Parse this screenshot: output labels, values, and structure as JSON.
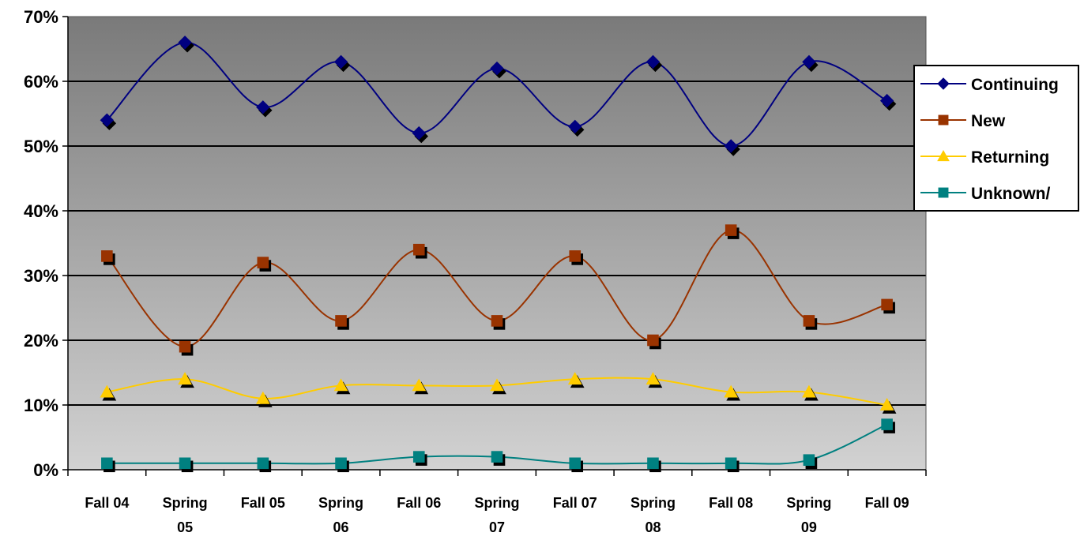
{
  "chart_data": {
    "type": "line",
    "title": "",
    "xlabel": "",
    "ylabel": "",
    "ylim": [
      0,
      70
    ],
    "y_tick_format": "percent",
    "y_ticks": [
      "0%",
      "10%",
      "20%",
      "30%",
      "40%",
      "50%",
      "60%",
      "70%"
    ],
    "categories": [
      [
        "Fall 04"
      ],
      [
        "Spring",
        "05"
      ],
      [
        "Fall 05"
      ],
      [
        "Spring",
        "06"
      ],
      [
        "Fall 06"
      ],
      [
        "Spring",
        "07"
      ],
      [
        "Fall 07"
      ],
      [
        "Spring",
        "08"
      ],
      [
        "Fall 08"
      ],
      [
        "Spring",
        "09"
      ],
      [
        "Fall 09"
      ]
    ],
    "grid": true,
    "legend_position": "right",
    "series": [
      {
        "name": "Continuing",
        "color": "#000080",
        "marker": "diamond",
        "values": [
          54,
          66,
          56,
          63,
          52,
          62,
          53,
          63,
          50,
          63,
          57
        ]
      },
      {
        "name": "New",
        "color": "#993300",
        "marker": "square",
        "values": [
          33,
          19,
          32,
          23,
          34,
          23,
          33,
          20,
          37,
          23,
          25.5
        ]
      },
      {
        "name": "Returning",
        "color": "#FFCC00",
        "marker": "triangle",
        "values": [
          12,
          14,
          11,
          13,
          13,
          13,
          14,
          14,
          12,
          12,
          10
        ]
      },
      {
        "name": "Unknown/",
        "color": "#008080",
        "marker": "square",
        "values": [
          1,
          1,
          1,
          1,
          2,
          2,
          1,
          1,
          1,
          1.5,
          7
        ]
      }
    ]
  }
}
